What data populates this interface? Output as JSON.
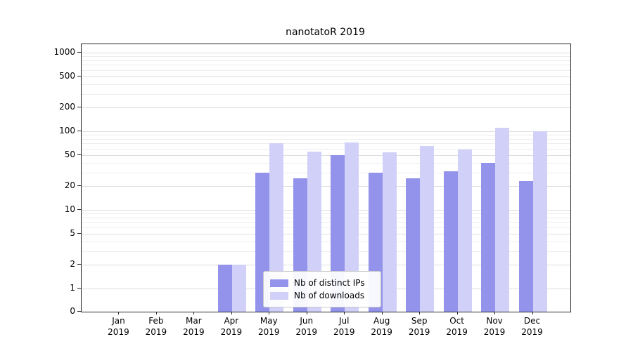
{
  "chart_data": {
    "type": "bar",
    "title": "nanotatoR 2019",
    "scale": "log",
    "grid": true,
    "months": [
      "Jan",
      "Feb",
      "Mar",
      "Apr",
      "May",
      "Jun",
      "Jul",
      "Aug",
      "Sep",
      "Oct",
      "Nov",
      "Dec"
    ],
    "year": "2019",
    "yticks": [
      0,
      1,
      2,
      5,
      10,
      20,
      50,
      100,
      200,
      500,
      1000
    ],
    "ylim": [
      0,
      1000
    ],
    "legend_position": "bottom-center",
    "series": [
      {
        "name": "Nb of distinct IPs",
        "color": "#9393ec",
        "values": [
          0,
          0,
          0,
          2,
          30,
          25,
          50,
          30,
          25,
          31,
          40,
          23
        ]
      },
      {
        "name": "Nb of downloads",
        "color": "#d0d0f8",
        "values": [
          0,
          0,
          0,
          2,
          70,
          55,
          72,
          54,
          65,
          58,
          110,
          101
        ]
      }
    ]
  }
}
